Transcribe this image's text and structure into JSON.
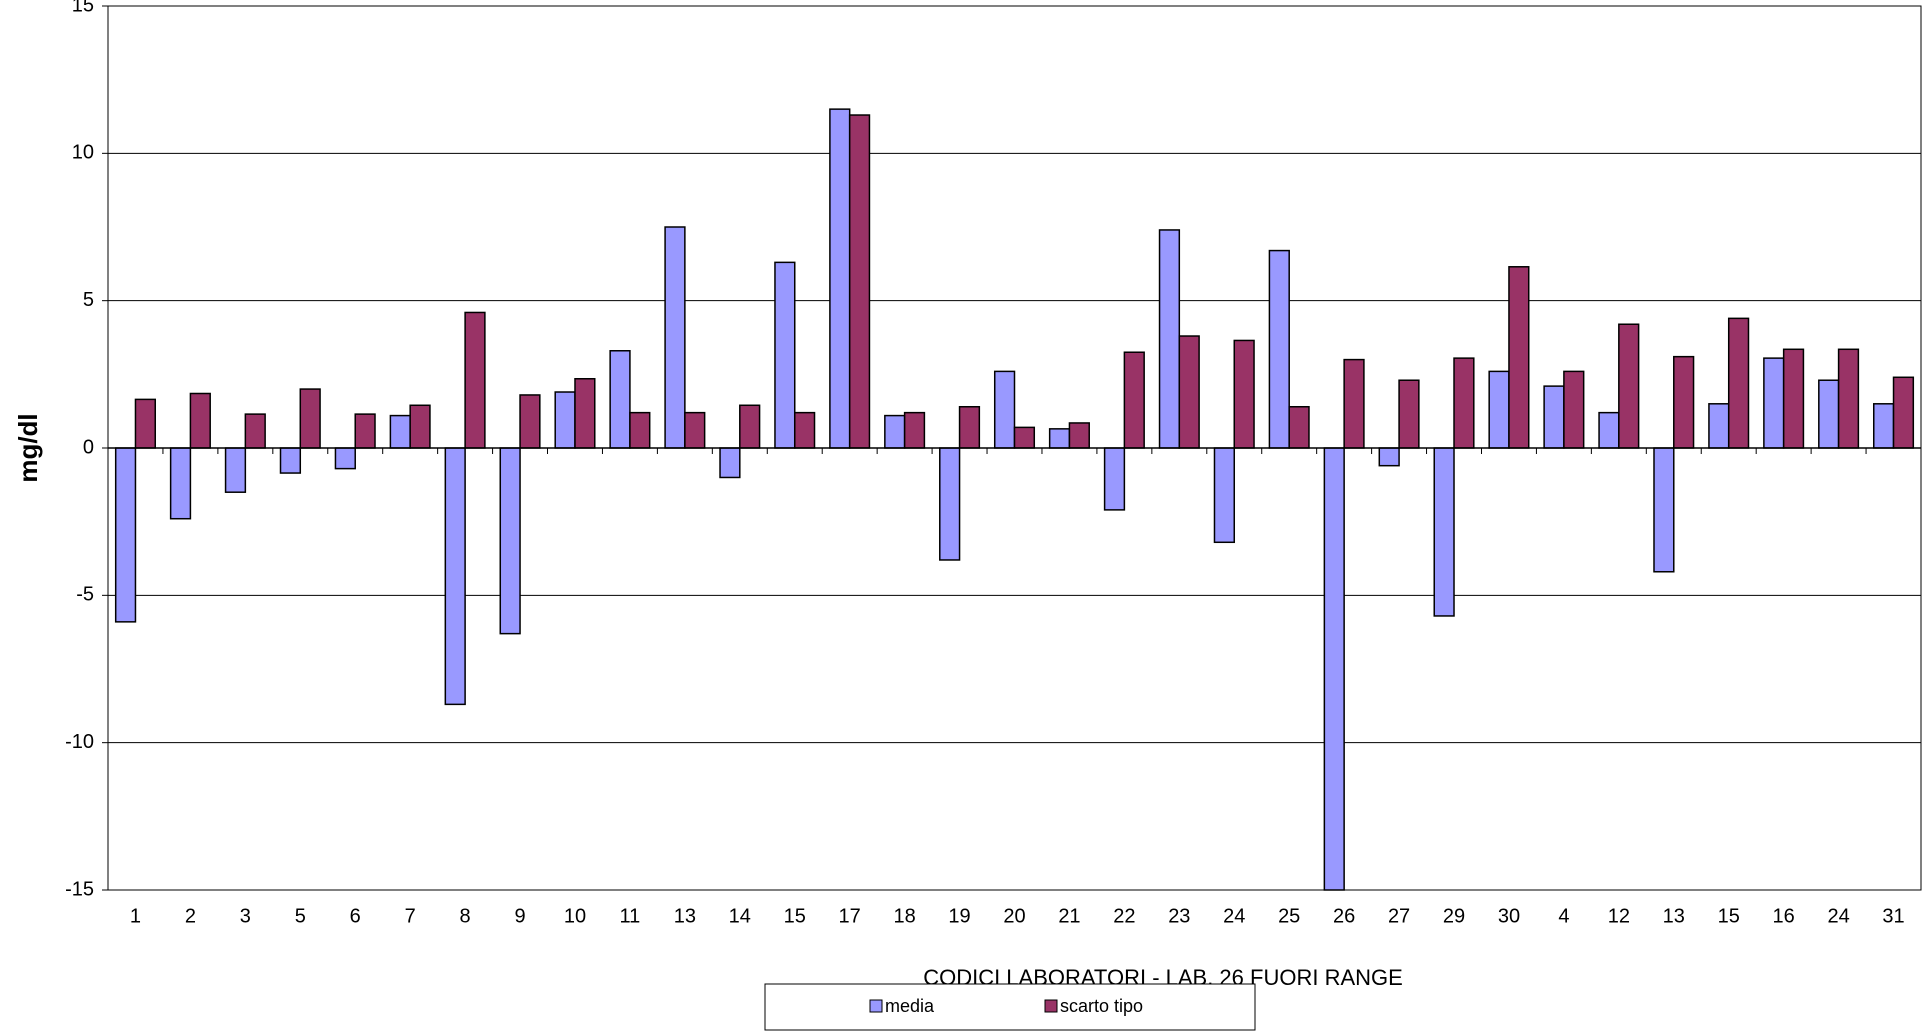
{
  "chart_data": {
    "type": "bar",
    "y_label": "mg/dl",
    "x_label": "CODICI LABORATORI - LAB.  26 FUORI RANGE",
    "categories": [
      "1",
      "2",
      "3",
      "5",
      "6",
      "7",
      "8",
      "9",
      "10",
      "11",
      "13",
      "14",
      "15",
      "17",
      "18",
      "19",
      "20",
      "21",
      "22",
      "23",
      "24",
      "25",
      "26",
      "27",
      "29",
      "30",
      "4",
      "12",
      "13",
      "15",
      "16",
      "24",
      "31"
    ],
    "series": [
      {
        "name": "media",
        "color": "#9999ff",
        "values": [
          -5.9,
          -2.4,
          -1.5,
          -0.85,
          -0.7,
          1.1,
          -8.7,
          -6.3,
          1.9,
          3.3,
          7.5,
          -1.0,
          6.3,
          11.5,
          1.1,
          -3.8,
          2.6,
          0.65,
          -2.1,
          7.4,
          -3.2,
          6.7,
          -15,
          -0.6,
          -5.7,
          2.6,
          2.1,
          1.2,
          -4.2,
          1.5,
          3.05,
          2.3,
          1.5
        ]
      },
      {
        "name": "scarto tipo",
        "color": "#993366",
        "values": [
          1.65,
          1.85,
          1.15,
          2.0,
          1.15,
          1.45,
          4.6,
          1.8,
          2.35,
          1.2,
          1.2,
          1.45,
          1.2,
          11.3,
          1.2,
          1.4,
          0.7,
          0.85,
          3.25,
          3.8,
          3.65,
          1.4,
          3.0,
          2.3,
          3.05,
          6.15,
          2.6,
          4.2,
          3.1,
          4.4,
          3.35,
          3.35,
          2.4
        ]
      }
    ],
    "ylim": [
      -15,
      15
    ],
    "yticks": [
      -15,
      -10,
      -5,
      0,
      5,
      10,
      15
    ],
    "grid": true
  }
}
